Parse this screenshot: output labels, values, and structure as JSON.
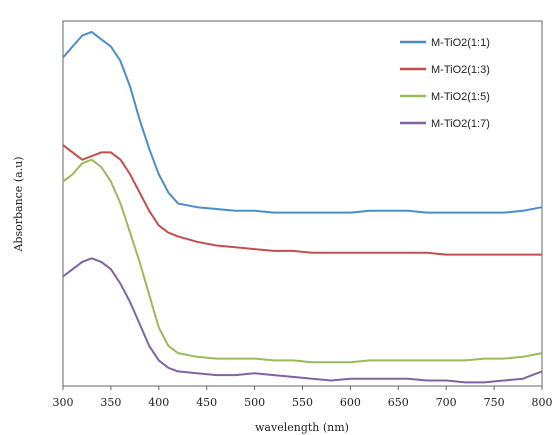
{
  "chart_data": {
    "type": "line",
    "xlabel": "wavelength (nm)",
    "ylabel": "Absorbance (a.u)",
    "xlim": [
      300,
      800
    ],
    "x_ticks": [
      "300",
      "350",
      "400",
      "450",
      "500",
      "550",
      "600",
      "650",
      "700",
      "750",
      "800"
    ],
    "ylim": [
      0,
      1
    ],
    "y_ticks_shown": false,
    "grid": false,
    "legend_position": "top-right",
    "x": [
      300,
      310,
      320,
      330,
      340,
      350,
      360,
      370,
      380,
      390,
      400,
      410,
      420,
      440,
      460,
      480,
      500,
      520,
      540,
      560,
      580,
      600,
      620,
      640,
      660,
      680,
      700,
      720,
      740,
      760,
      780,
      800
    ],
    "series": [
      {
        "name": "M-TiO2(1:1)",
        "color": "#4a8ec9",
        "values": [
          0.9,
          0.93,
          0.96,
          0.97,
          0.95,
          0.93,
          0.89,
          0.82,
          0.73,
          0.65,
          0.58,
          0.53,
          0.5,
          0.49,
          0.485,
          0.48,
          0.48,
          0.475,
          0.475,
          0.475,
          0.475,
          0.475,
          0.48,
          0.48,
          0.48,
          0.475,
          0.475,
          0.475,
          0.475,
          0.475,
          0.48,
          0.49
        ]
      },
      {
        "name": "M-TiO2(1:3)",
        "color": "#c0504d",
        "values": [
          0.66,
          0.64,
          0.62,
          0.63,
          0.64,
          0.64,
          0.62,
          0.58,
          0.53,
          0.48,
          0.44,
          0.42,
          0.41,
          0.395,
          0.385,
          0.38,
          0.375,
          0.37,
          0.37,
          0.365,
          0.365,
          0.365,
          0.365,
          0.365,
          0.365,
          0.365,
          0.36,
          0.36,
          0.36,
          0.36,
          0.36,
          0.36
        ]
      },
      {
        "name": "M-TiO2(1:5)",
        "color": "#9bbb59",
        "values": [
          0.56,
          0.58,
          0.61,
          0.62,
          0.6,
          0.56,
          0.5,
          0.42,
          0.34,
          0.25,
          0.16,
          0.11,
          0.09,
          0.08,
          0.075,
          0.075,
          0.075,
          0.07,
          0.07,
          0.065,
          0.065,
          0.065,
          0.07,
          0.07,
          0.07,
          0.07,
          0.07,
          0.07,
          0.075,
          0.075,
          0.08,
          0.09
        ]
      },
      {
        "name": "M-TiO2(1:7)",
        "color": "#8064a2",
        "values": [
          0.3,
          0.32,
          0.34,
          0.35,
          0.34,
          0.32,
          0.28,
          0.23,
          0.17,
          0.11,
          0.07,
          0.05,
          0.04,
          0.035,
          0.03,
          0.03,
          0.035,
          0.03,
          0.025,
          0.02,
          0.015,
          0.02,
          0.02,
          0.02,
          0.02,
          0.015,
          0.015,
          0.01,
          0.01,
          0.015,
          0.02,
          0.04
        ]
      }
    ]
  }
}
